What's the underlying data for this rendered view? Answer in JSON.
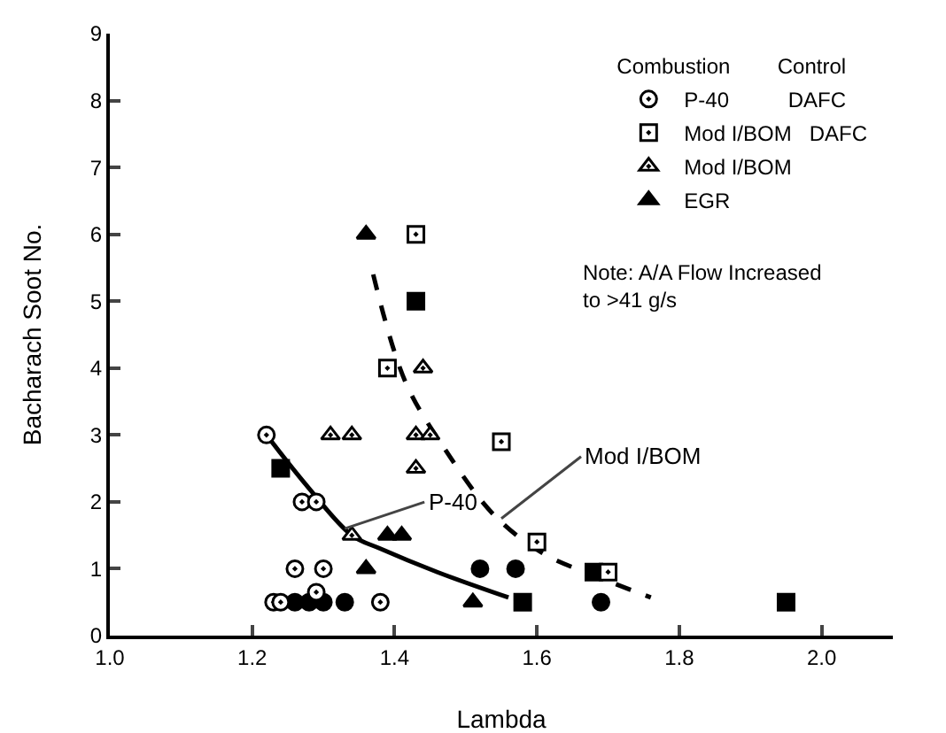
{
  "chart_data": {
    "type": "scatter",
    "xlabel": "Lambda",
    "ylabel": "Bacharach Soot No.",
    "legend_title": "Combustion        Control",
    "legend": "top right",
    "grid": false,
    "xlim": [
      1.0,
      2.1
    ],
    "xticks": [
      {
        "value": 1.0,
        "label": "1.0"
      },
      {
        "value": 1.2,
        "label": "1.2"
      },
      {
        "value": 1.4,
        "label": "1.4"
      },
      {
        "value": 1.6,
        "label": "1.6"
      },
      {
        "value": 1.8,
        "label": "1.8"
      },
      {
        "value": 2.0,
        "label": "2.0"
      }
    ],
    "ylim": [
      0,
      9
    ],
    "yticks": [
      0,
      1,
      2,
      3,
      4,
      5,
      6,
      7,
      8,
      9
    ],
    "series": [
      {
        "name": "P-40          DAFC",
        "marker": "circle",
        "color": "#ffffff",
        "x": [
          1.22,
          1.27,
          1.29,
          1.26,
          1.3,
          1.29,
          1.23,
          1.24,
          1.38
        ],
        "values": [
          3,
          2,
          2,
          1,
          1,
          0.65,
          0.5,
          0.5,
          0.5
        ]
      },
      {
        "name": "Mod I/BOM   DAFC",
        "marker": "square",
        "color": "#ffffff",
        "x": [
          1.43,
          1.39,
          1.55,
          1.6,
          1.7
        ],
        "values": [
          6,
          4,
          2.9,
          1.4,
          0.95
        ]
      },
      {
        "name": "Mod I/BOM",
        "marker": "triangle",
        "color": "#ffffff",
        "x": [
          1.44,
          1.31,
          1.34,
          1.43,
          1.45,
          1.43,
          1.34
        ],
        "values": [
          4,
          3,
          3,
          3,
          3,
          2.5,
          1.5
        ]
      },
      {
        "marker": "circle",
        "color": "#000000",
        "x": [
          1.26,
          1.28,
          1.3,
          1.33,
          1.52,
          1.57,
          1.69
        ],
        "values": [
          0.5,
          0.5,
          0.5,
          0.5,
          1,
          1,
          0.5
        ]
      },
      {
        "marker": "square",
        "color": "#000000",
        "x": [
          1.43,
          1.24,
          1.58,
          1.68,
          1.95
        ],
        "values": [
          5,
          2.5,
          0.5,
          0.95,
          0.5
        ]
      },
      {
        "name": "EGR",
        "marker": "triangle",
        "color": "#000000",
        "x": [
          1.36,
          1.39,
          1.41,
          1.36,
          1.51
        ],
        "values": [
          6,
          1.5,
          1.5,
          1,
          0.5
        ]
      },
      {
        "type": "line",
        "line_style": "solid",
        "color": "#000000",
        "x": [
          1.22,
          1.28,
          1.34,
          1.38,
          1.46,
          1.56
        ],
        "values": [
          3,
          2.2,
          1.5,
          1.3,
          0.95,
          0.57
        ]
      },
      {
        "type": "line",
        "line_style": "dashed",
        "color": "#000000",
        "x": [
          1.37,
          1.415,
          1.47,
          1.54,
          1.61,
          1.68,
          1.76
        ],
        "values": [
          5.4,
          3.8,
          2.8,
          1.8,
          1.22,
          0.9,
          0.57
        ]
      }
    ],
    "annotations": [
      {
        "text": "P-40",
        "x": 1.33,
        "y": 1.6
      },
      {
        "text": "Mod I/BOM",
        "x": 1.55,
        "y": 1.75
      },
      "Note: A/A Flow Increased\nto >41 g/s"
    ]
  }
}
